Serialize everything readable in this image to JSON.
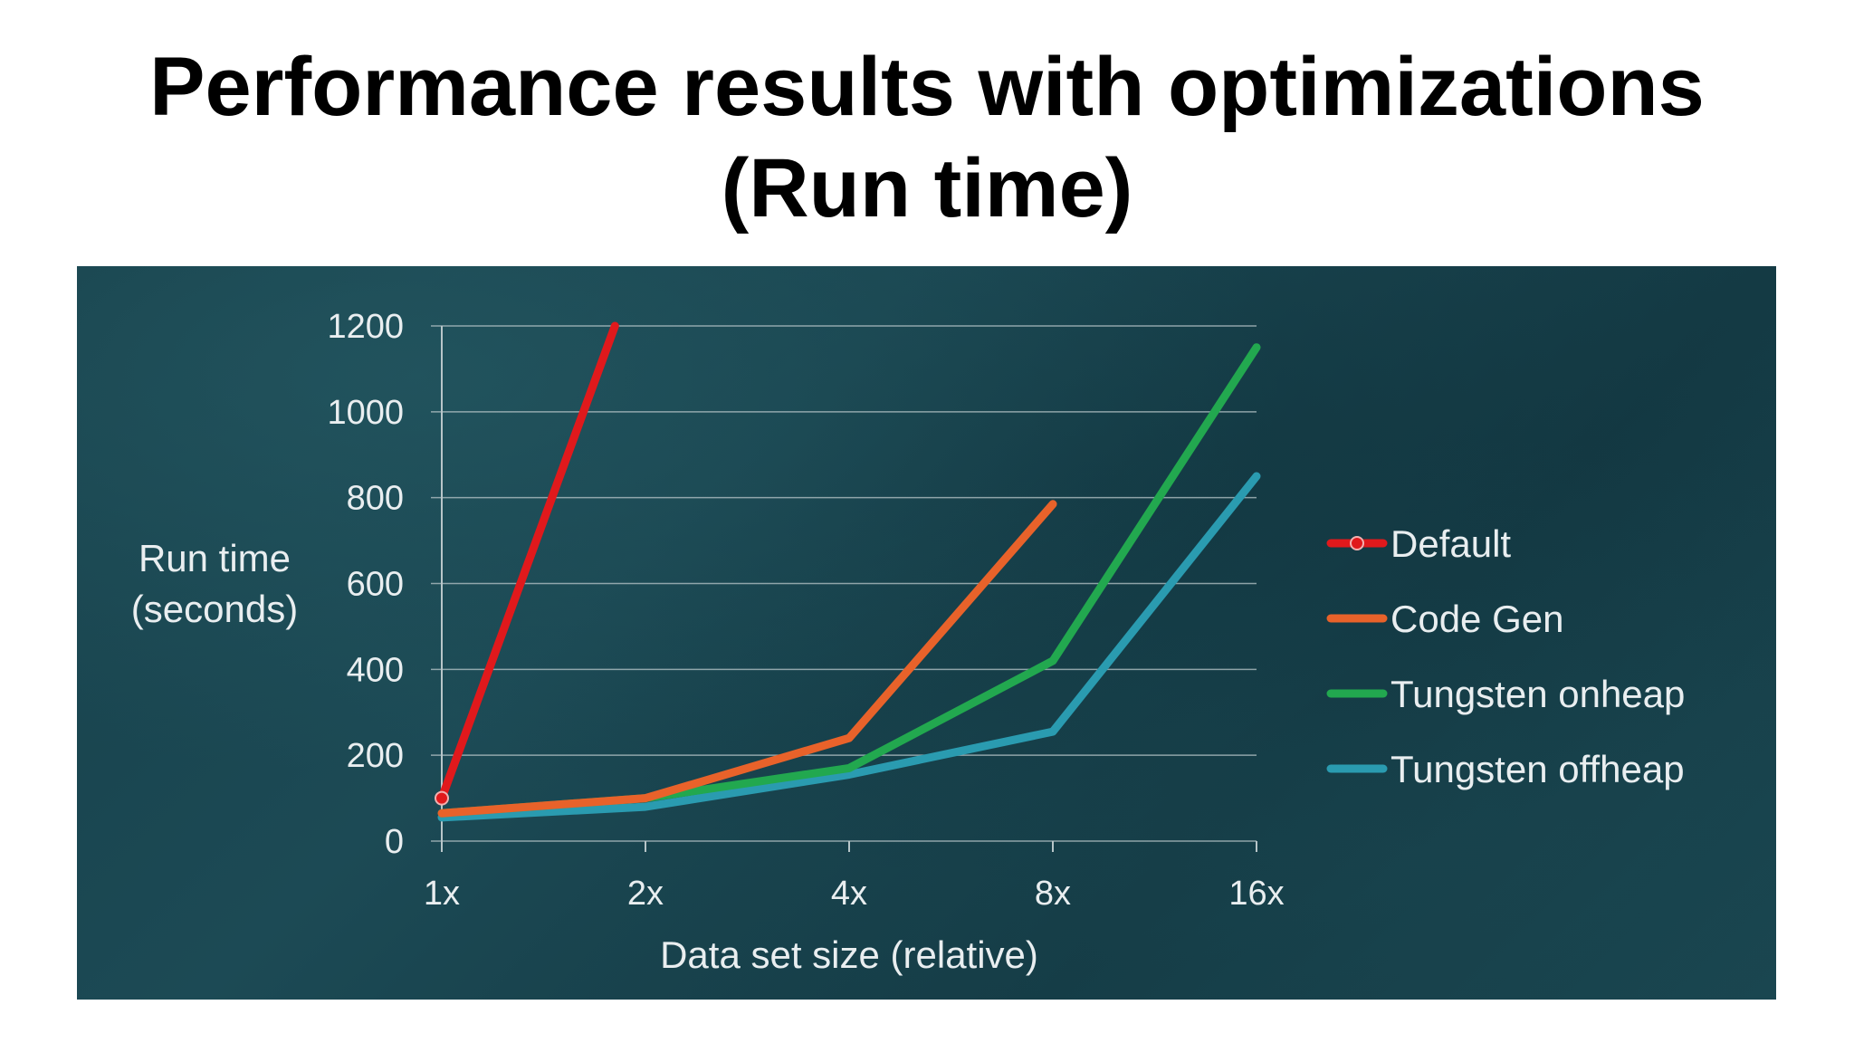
{
  "title": {
    "line1": "Performance results with optimizations",
    "line2": "(Run time)"
  },
  "chart_data": {
    "type": "line",
    "categories": [
      "1x",
      "2x",
      "4x",
      "8x",
      "16x"
    ],
    "xlabel": "Data set size (relative)",
    "ylabel_lines": [
      "Run time",
      "(seconds)"
    ],
    "ylim": [
      0,
      1200
    ],
    "yticks": [
      0,
      200,
      400,
      600,
      800,
      1000,
      1200
    ],
    "grid": true,
    "legend_position": "right",
    "series": [
      {
        "name": "Default",
        "color": "#e0191c",
        "marker": "circle",
        "points": [
          [
            0,
            100
          ],
          [
            0.85,
            1200
          ]
        ]
      },
      {
        "name": "Code Gen",
        "color": "#e8622a",
        "points": [
          [
            0,
            65
          ],
          [
            1,
            100
          ],
          [
            2,
            240
          ],
          [
            3,
            785
          ]
        ]
      },
      {
        "name": "Tungsten onheap",
        "color": "#22a84f",
        "points": [
          [
            0,
            65
          ],
          [
            1,
            100
          ],
          [
            2,
            170
          ],
          [
            3,
            420
          ],
          [
            4,
            1150
          ]
        ]
      },
      {
        "name": "Tungsten offheap",
        "color": "#2a9bb0",
        "points": [
          [
            0,
            55
          ],
          [
            1,
            80
          ],
          [
            2,
            155
          ],
          [
            3,
            255
          ],
          [
            4,
            850
          ]
        ]
      }
    ]
  },
  "colors": {
    "panel_bg": "#1a4550",
    "gridline": "#b8c6c9",
    "text": "#e9eef0"
  }
}
